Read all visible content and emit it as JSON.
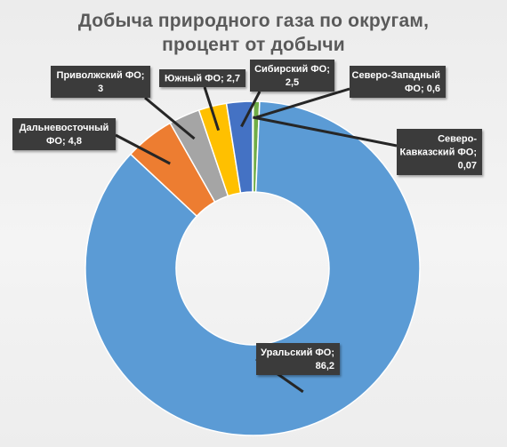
{
  "chart_data": {
    "type": "pie",
    "variant": "donut",
    "title": [
      "Добыча природного газа по округам,",
      "процент от добычи"
    ],
    "start_angle_deg": 0,
    "direction": "clockwise",
    "slices": [
      {
        "name": "Северо-Кавказский ФО",
        "value": 0.07,
        "color": "#a5a5a5",
        "label": [
          "Северо-",
          "Кавказский  ФО;",
          "0,07"
        ]
      },
      {
        "name": "Северо-Западный ФО",
        "value": 0.6,
        "color": "#70ad47",
        "label": [
          "Северо-Западный",
          "ФО; 0,6"
        ]
      },
      {
        "name": "Уральский ФО",
        "value": 86.2,
        "color": "#5b9bd5",
        "label": [
          "Уральский  ФО;",
          "86,2"
        ]
      },
      {
        "name": "Дальневосточный ФО",
        "value": 4.8,
        "color": "#ed7d31",
        "label": [
          "Дальневосточный",
          "ФО; 4,8"
        ]
      },
      {
        "name": "Приволжский ФО",
        "value": 3,
        "color": "#a5a5a5",
        "label": [
          "Приволжский  ФО;",
          "3"
        ]
      },
      {
        "name": "Южный ФО",
        "value": 2.7,
        "color": "#ffc000",
        "label": [
          "Южный ФО; 2,7"
        ]
      },
      {
        "name": "Сибирский ФО",
        "value": 2.5,
        "color": "#4472c4",
        "label": [
          "Сибирский  ФО;",
          "2,5"
        ]
      }
    ]
  }
}
